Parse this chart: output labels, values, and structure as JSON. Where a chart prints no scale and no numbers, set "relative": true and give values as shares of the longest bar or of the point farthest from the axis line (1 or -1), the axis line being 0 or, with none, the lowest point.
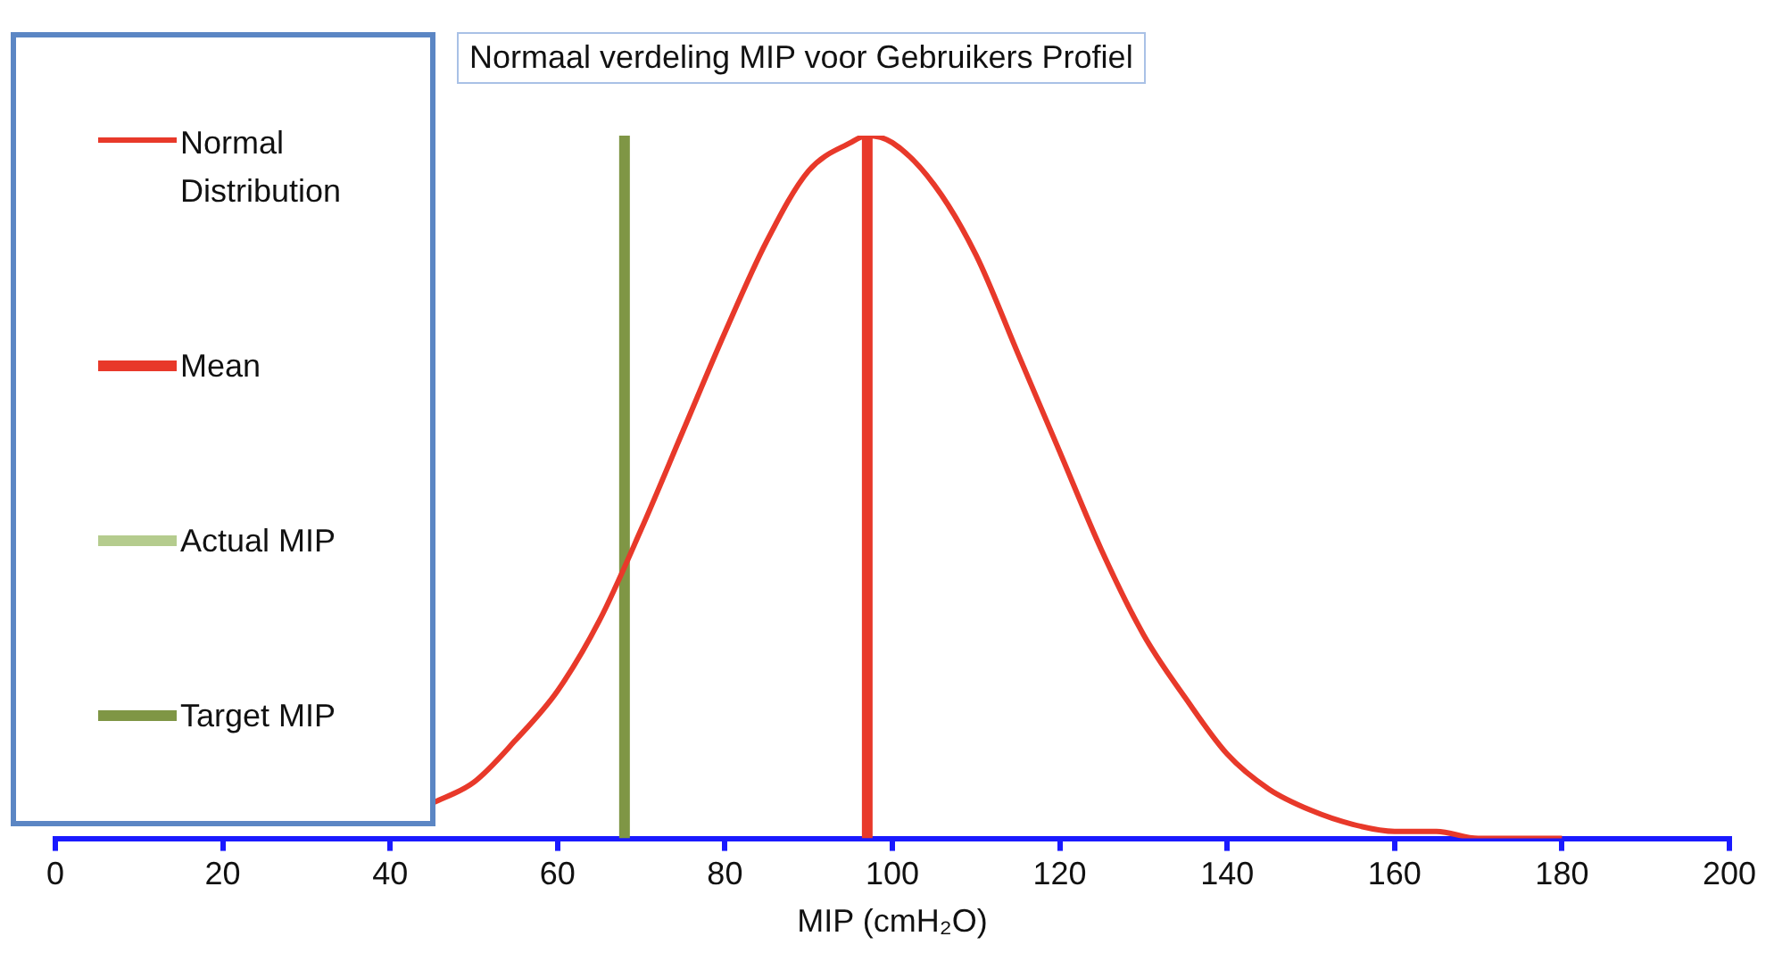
{
  "chart_data": {
    "type": "line",
    "title": "Normaal verdeling MIP voor Gebruikers Profiel",
    "xlabel": "MIP (cmH₂O)",
    "relative": true,
    "xlim": [
      0,
      200
    ],
    "xticks": [
      0,
      20,
      40,
      60,
      80,
      100,
      120,
      140,
      160,
      180,
      200
    ],
    "grid": false,
    "legend": "left",
    "marker": "none",
    "series": [
      {
        "name": "Normal Distribution",
        "color": "#e8392a",
        "x": [
          45,
          50,
          55,
          60,
          65,
          70,
          75,
          80,
          85,
          90,
          95,
          97,
          100,
          105,
          110,
          115,
          120,
          125,
          130,
          135,
          140,
          145,
          150,
          155,
          160,
          165,
          170,
          175,
          180
        ],
        "values": [
          0.05,
          0.08,
          0.14,
          0.21,
          0.31,
          0.44,
          0.58,
          0.72,
          0.85,
          0.95,
          0.99,
          1,
          0.99,
          0.93,
          0.83,
          0.69,
          0.55,
          0.41,
          0.29,
          0.2,
          0.12,
          0.07,
          0.04,
          0.02,
          0.01,
          0.01,
          0,
          0,
          0
        ]
      },
      {
        "name": "Mean",
        "color": "#e8392a",
        "x": [
          97,
          97
        ],
        "values": [
          0,
          1
        ]
      },
      {
        "name": "Actual MIP",
        "color": "#b5cc8e",
        "x": [
          null,
          null
        ],
        "values": [
          null,
          null
        ]
      },
      {
        "name": "Target MIP",
        "color": "#7f9645",
        "x": [
          68,
          68
        ],
        "values": [
          0,
          1
        ]
      }
    ]
  }
}
